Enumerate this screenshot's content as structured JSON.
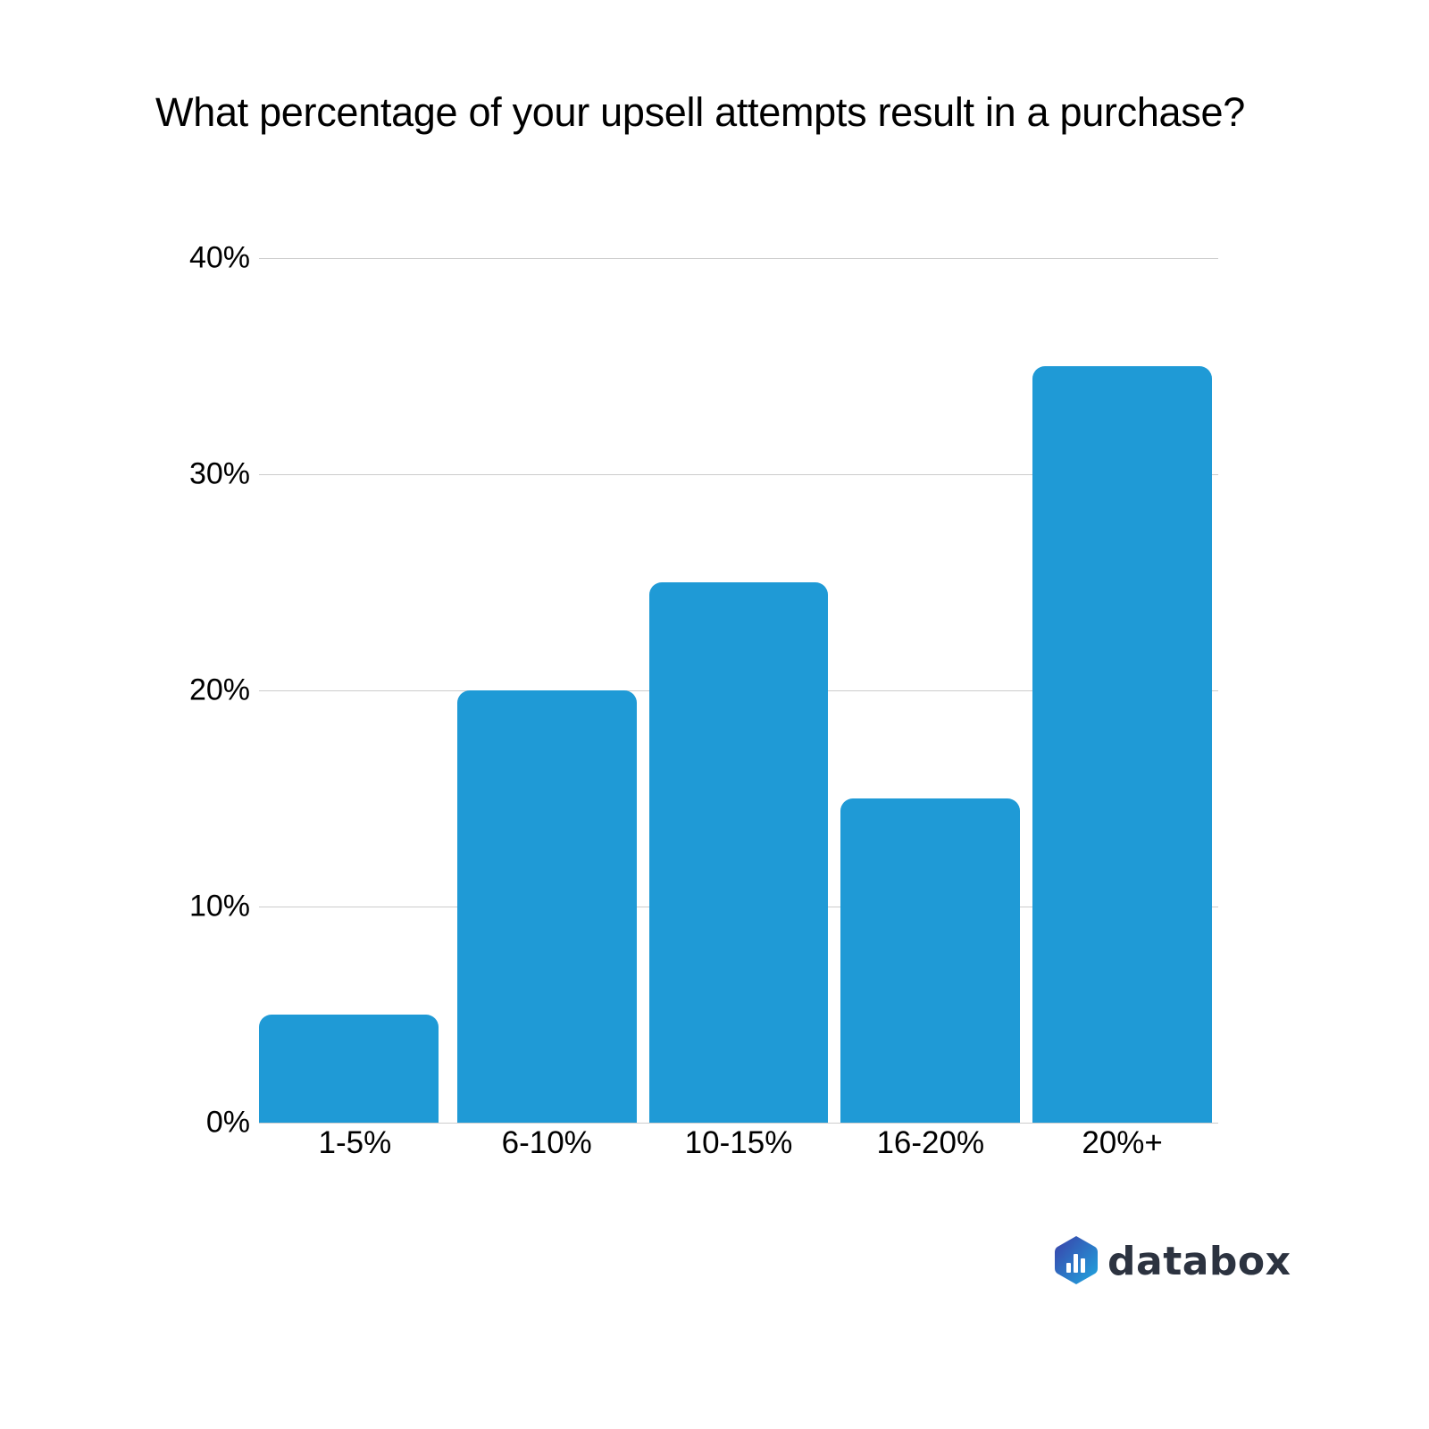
{
  "title": "What percentage of your upsell attempts result in a purchase?",
  "brand": {
    "name": "databox",
    "color_text": "#2c3340",
    "color_icon_start": "#3b3fa8",
    "color_icon_end": "#1fa8e0"
  },
  "colors": {
    "bar": "#1f9ad6",
    "grid": "#cccccc"
  },
  "y_ticks": [
    "0%",
    "10%",
    "20%",
    "30%",
    "40%"
  ],
  "chart_data": {
    "type": "bar",
    "title": "What percentage of your upsell attempts result in a purchase?",
    "categories": [
      "1-5%",
      "6-10%",
      "10-15%",
      "16-20%",
      "20%+"
    ],
    "values": [
      5,
      20,
      25,
      15,
      35
    ],
    "xlabel": "",
    "ylabel": "",
    "ylim": [
      0,
      40
    ],
    "y_tick_labels": [
      "0%",
      "10%",
      "20%",
      "30%",
      "40%"
    ],
    "grid": true,
    "legend": "none",
    "unit": "%"
  }
}
